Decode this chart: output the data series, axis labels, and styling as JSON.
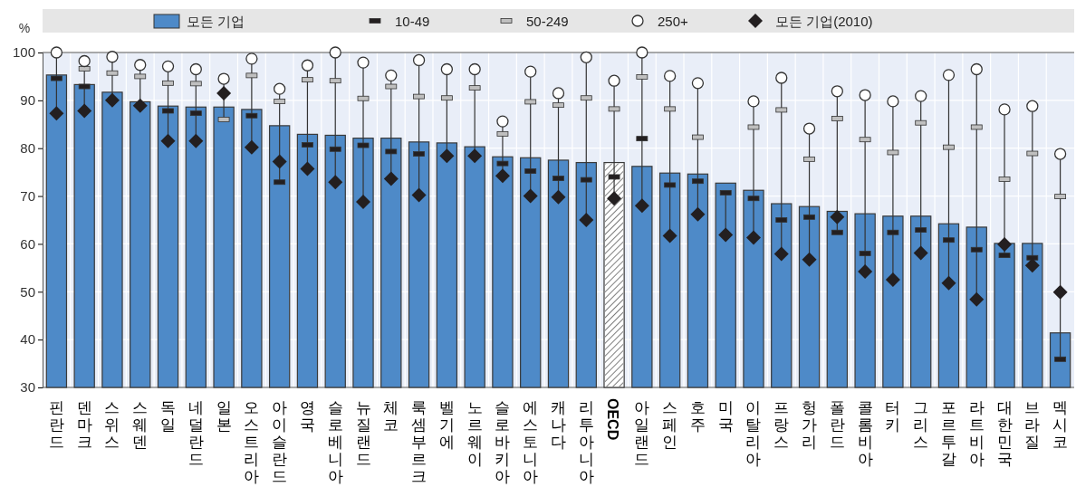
{
  "chart_data": {
    "type": "bar",
    "ylabel": "%",
    "ylim": [
      30,
      100
    ],
    "yticks": [
      30,
      40,
      50,
      60,
      70,
      80,
      90,
      100
    ],
    "grid": true,
    "legend": "top",
    "categories": [
      "핀란드",
      "덴마크",
      "스위스",
      "스웨덴",
      "독일",
      "네덜란드",
      "일본",
      "오스트리아",
      "아이슬란드",
      "영국",
      "슬로베니아",
      "뉴질랜드",
      "체코",
      "룩셈부르크",
      "벨기에",
      "노르웨이",
      "슬로바키아",
      "에스토니아",
      "캐나다",
      "리투아니아",
      "OECD",
      "아일랜드",
      "스페인",
      "호주",
      "미국",
      "이탈리아",
      "프랑스",
      "헝가리",
      "폴란드",
      "콜롬비아",
      "터키",
      "그리스",
      "포르투갈",
      "라트비아",
      "대한민국",
      "브라질",
      "멕시코"
    ],
    "series": [
      {
        "name": "모든 기업",
        "type": "bar",
        "color": "#4e8ac8",
        "colors": [
          "#4e8ac8",
          "#4e8ac8",
          "#4e8ac8",
          "#4e8ac8",
          "#4e8ac8",
          "#4e8ac8",
          "#4e8ac8",
          "#4e8ac8",
          "#4e8ac8",
          "#4e8ac8",
          "#4e8ac8",
          "#4e8ac8",
          "#4e8ac8",
          "#4e8ac8",
          "#4e8ac8",
          "#4e8ac8",
          "#4e8ac8",
          "#4e8ac8",
          "#4e8ac8",
          "#4e8ac8",
          "#ffffff",
          "#4e8ac8",
          "#4e8ac8",
          "#4e8ac8",
          "#4e8ac8",
          "#4e8ac8",
          "#4e8ac8",
          "#4e8ac8",
          "#4e8ac8",
          "#4e8ac8",
          "#4e8ac8",
          "#4e8ac8",
          "#4e8ac8",
          "#4e8ac8",
          "#4e8ac8",
          "#4e8ac8",
          "#4e8ac8"
        ],
        "values": [
          95.3,
          93.3,
          91.7,
          89.7,
          88.8,
          88.6,
          88.6,
          88.1,
          84.7,
          82.9,
          82.7,
          82.1,
          82.1,
          81.3,
          81.1,
          80.3,
          78.2,
          78.0,
          77.5,
          77.0,
          77.0,
          76.2,
          74.8,
          74.6,
          72.7,
          71.2,
          68.4,
          67.8,
          66.8,
          66.3,
          65.8,
          65.8,
          64.2,
          63.5,
          60.1,
          60.1,
          41.4
        ]
      },
      {
        "name": "10-49",
        "type": "scatter",
        "marker": "square",
        "color": "#231f20",
        "values": [
          94.6,
          92.9,
          null,
          null,
          87.8,
          87.3,
          null,
          86.8,
          72.9,
          80.7,
          79.8,
          80.6,
          79.3,
          78.8,
          null,
          null,
          76.8,
          75.2,
          73.7,
          73.4,
          74.0,
          82.0,
          72.3,
          73.1,
          70.7,
          69.5,
          65.0,
          65.6,
          62.4,
          58.0,
          62.4,
          62.9,
          60.8,
          58.8,
          57.6,
          57.1,
          35.9
        ]
      },
      {
        "name": "50-249",
        "type": "scatter",
        "marker": "square",
        "color": "#bfbfbf",
        "values": [
          null,
          96.6,
          95.7,
          95.0,
          93.6,
          93.5,
          86.0,
          95.2,
          89.8,
          94.3,
          94.1,
          90.4,
          92.9,
          90.8,
          90.5,
          92.6,
          83.0,
          89.7,
          89.0,
          90.5,
          88.2,
          94.9,
          88.2,
          82.3,
          null,
          84.4,
          88.0,
          77.7,
          86.2,
          81.8,
          79.1,
          85.3,
          80.2,
          84.4,
          73.5,
          78.9,
          69.9
        ]
      },
      {
        "name": "250+",
        "type": "scatter",
        "marker": "circle",
        "color": "#ffffff",
        "values": [
          100,
          98.2,
          99.1,
          97.4,
          97.1,
          96.5,
          94.5,
          98.7,
          92.4,
          97.3,
          100,
          97.9,
          95.2,
          98.4,
          96.5,
          96.5,
          85.6,
          96.0,
          91.5,
          99.0,
          94.1,
          100,
          95.1,
          93.6,
          null,
          89.8,
          94.7,
          84.1,
          91.9,
          91.1,
          89.8,
          90.9,
          95.3,
          96.5,
          88.1,
          88.8,
          78.8
        ]
      },
      {
        "name": "모든 기업(2010)",
        "type": "scatter",
        "marker": "diamond",
        "color": "#231f20",
        "values": [
          87.3,
          87.8,
          90.0,
          88.9,
          81.5,
          81.5,
          91.5,
          80.2,
          77.2,
          75.7,
          72.9,
          68.8,
          73.6,
          70.2,
          78.4,
          78.4,
          74.2,
          70.0,
          69.8,
          65.0,
          69.5,
          68.0,
          61.7,
          66.2,
          61.9,
          61.3,
          57.9,
          56.7,
          65.6,
          54.2,
          52.5,
          58.1,
          51.8,
          48.4,
          59.9,
          55.5,
          49.9
        ]
      }
    ]
  }
}
